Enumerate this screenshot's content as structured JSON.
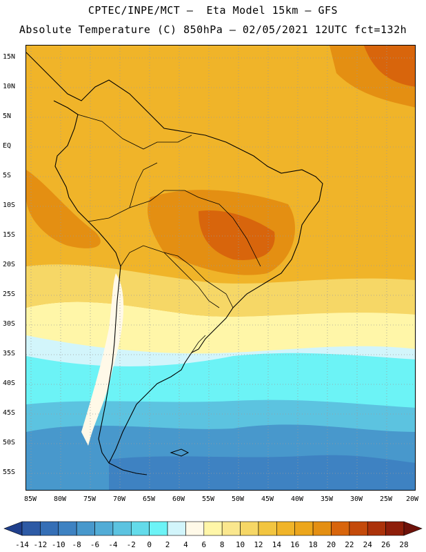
{
  "title_line1": "CPTEC/INPE/MCT –  Eta Model 15km – GFS",
  "title_line2": "Absolute Temperature (C) 850hPa – 02/05/2021 12UTC fct=132h",
  "lat_labels": [
    "15N",
    "10N",
    "5N",
    "EQ",
    "5S",
    "10S",
    "15S",
    "20S",
    "25S",
    "30S",
    "35S",
    "40S",
    "45S",
    "50S",
    "55S"
  ],
  "lon_labels": [
    "85W",
    "80W",
    "75W",
    "70W",
    "65W",
    "60W",
    "55W",
    "50W",
    "45W",
    "40W",
    "35W",
    "30W",
    "25W",
    "20W"
  ],
  "colorbar": {
    "labels": [
      "-14",
      "-12",
      "-10",
      "-8",
      "-6",
      "-4",
      "-2",
      "0",
      "2",
      "4",
      "6",
      "8",
      "10",
      "12",
      "14",
      "16",
      "18",
      "20",
      "22",
      "24",
      "26",
      "28"
    ],
    "colors": [
      "#1f3f8c",
      "#2d5aa5",
      "#356fb6",
      "#3e82c2",
      "#4898cc",
      "#52acd6",
      "#5cc3e0",
      "#63dbea",
      "#6cf3f6",
      "#d2f5fb",
      "#fff9e8",
      "#fff6a8",
      "#fae78e",
      "#f6d766",
      "#f2c540",
      "#f0b429",
      "#eca61c",
      "#e48f12",
      "#d8650c",
      "#c44a0a",
      "#ab320a",
      "#8e1e0a",
      "#6e120a"
    ]
  },
  "map_colors": {
    "hot1": "#eca61c",
    "hot2": "#e48f12",
    "hot3": "#d8650c",
    "warm": "#f2c540",
    "mild": "#f6d766",
    "cream": "#fff9e8",
    "cyan": "#6cf3f6",
    "cyan2": "#5cc3e0",
    "blue1": "#4898cc",
    "blue2": "#3e82c2",
    "land_line": "#000000",
    "grid": "#9a9a9a"
  }
}
